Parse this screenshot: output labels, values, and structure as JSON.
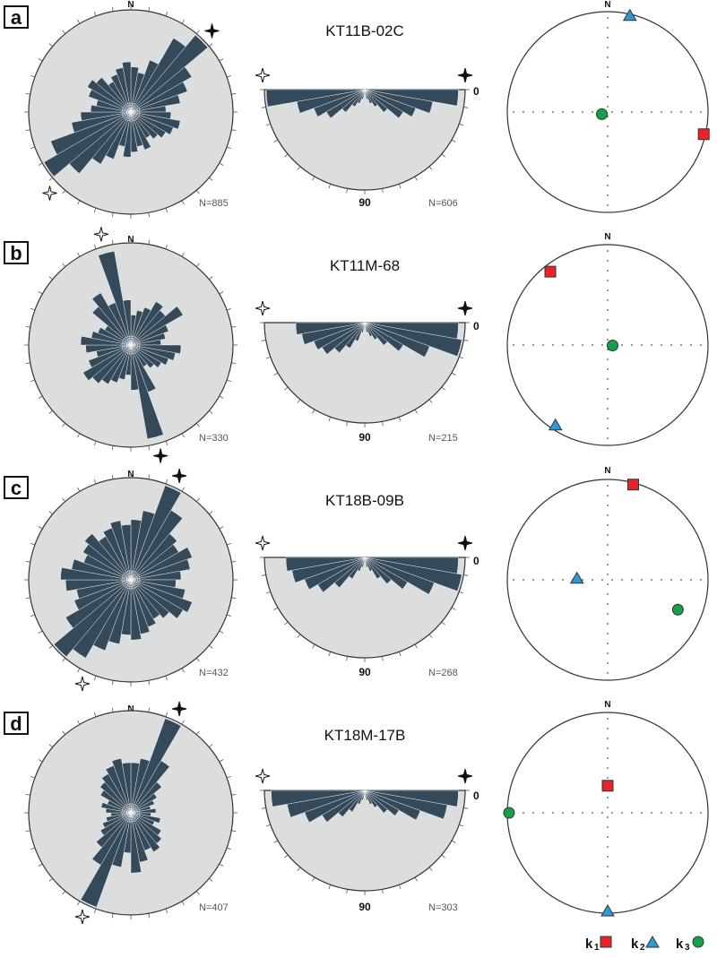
{
  "colors": {
    "bar": "#34495a",
    "disk": "#dcdddd",
    "outline": "#333333",
    "k1": "#e8232a",
    "k2": "#2b9ad6",
    "k3": "#16a04a"
  },
  "labels": {
    "north": "N",
    "dip_zero": "0",
    "dip_ninety": "90"
  },
  "legend": {
    "k1": {
      "main": "k",
      "sub": "1"
    },
    "k2": {
      "main": "k",
      "sub": "2"
    },
    "k3": {
      "main": "k",
      "sub": "3"
    }
  },
  "chart_data": [
    {
      "type": "rose",
      "panel": "a",
      "title": "KT11B-02C",
      "strike_n": "N=885",
      "dip_n": "N=606",
      "strike_bins_deg10": [
        0.45,
        0.4,
        0.55,
        0.85,
        1.0,
        0.7,
        0.6,
        0.5,
        0.35,
        0.4,
        0.5,
        0.45,
        0.4,
        0.35,
        0.3,
        0.4,
        0.35,
        0.4,
        0.45,
        0.35,
        0.5,
        0.6,
        0.8,
        1.0,
        0.85,
        0.6,
        0.5,
        0.4,
        0.35,
        0.45,
        0.5,
        0.45,
        0.35,
        0.4,
        0.45,
        0.5
      ],
      "dip_bins_deg10": [
        0.95,
        0.7,
        0.55,
        0.45,
        0.3,
        0.2,
        0.15,
        0.1,
        0.05,
        0.05,
        0.1,
        0.15,
        0.2,
        0.3,
        0.45,
        0.55,
        0.7,
        1.0
      ],
      "k1": {
        "az": 103,
        "pl": 2
      },
      "k2": {
        "az": 13,
        "pl": 2
      },
      "k3": {
        "az": 250,
        "pl": 85
      }
    },
    {
      "type": "rose",
      "panel": "b",
      "title": "KT11M-68",
      "strike_n": "N=330",
      "dip_n": "N=215",
      "strike_bins_deg10": [
        0.3,
        0.35,
        0.4,
        0.5,
        0.45,
        0.6,
        0.4,
        0.35,
        0.3,
        0.5,
        0.45,
        0.4,
        0.35,
        0.3,
        0.25,
        0.5,
        0.95,
        0.45,
        0.3,
        0.35,
        0.4,
        0.45,
        0.5,
        0.55,
        0.45,
        0.35,
        0.45,
        0.5,
        0.4,
        0.35,
        0.3,
        0.5,
        0.6,
        0.45,
        0.95,
        0.45
      ],
      "dip_bins_deg10": [
        0.95,
        1.0,
        0.7,
        0.45,
        0.3,
        0.2,
        0.15,
        0.1,
        0.05,
        0.05,
        0.1,
        0.2,
        0.3,
        0.4,
        0.5,
        0.55,
        0.65,
        0.7
      ],
      "k1": {
        "az": 322,
        "pl": 8
      },
      "k2": {
        "az": 213,
        "pl": 5
      },
      "k3": {
        "az": 95,
        "pl": 86
      }
    },
    {
      "type": "rose",
      "panel": "c",
      "title": "KT18B-09B",
      "strike_n": "N=432",
      "dip_n": "N=268",
      "strike_bins_deg10": [
        0.6,
        0.7,
        1.0,
        0.8,
        0.6,
        0.55,
        0.65,
        0.6,
        0.5,
        0.45,
        0.55,
        0.65,
        0.6,
        0.5,
        0.45,
        0.5,
        0.55,
        0.6,
        0.55,
        0.65,
        0.75,
        0.9,
        1.0,
        0.75,
        0.6,
        0.55,
        0.65,
        0.7,
        0.6,
        0.5,
        0.55,
        0.6,
        0.5,
        0.55,
        0.6,
        0.55
      ],
      "dip_bins_deg10": [
        0.95,
        1.0,
        0.75,
        0.5,
        0.35,
        0.25,
        0.15,
        0.1,
        0.05,
        0.05,
        0.1,
        0.15,
        0.25,
        0.4,
        0.55,
        0.65,
        0.75,
        0.8
      ],
      "k1": {
        "az": 15,
        "pl": 2
      },
      "k2": {
        "az": 272,
        "pl": 65
      },
      "k3": {
        "az": 113,
        "pl": 25
      }
    },
    {
      "type": "rose",
      "panel": "d",
      "title": "KT18M-17B",
      "strike_n": "N=407",
      "dip_n": "N=303",
      "strike_bins_deg10": [
        0.5,
        0.55,
        1.0,
        0.6,
        0.4,
        0.3,
        0.25,
        0.2,
        0.25,
        0.2,
        0.3,
        0.25,
        0.35,
        0.4,
        0.45,
        0.4,
        0.5,
        0.6,
        0.4,
        0.55,
        1.0,
        0.6,
        0.45,
        0.35,
        0.3,
        0.25,
        0.2,
        0.25,
        0.3,
        0.25,
        0.35,
        0.4,
        0.45,
        0.5,
        0.55,
        0.5
      ],
      "dip_bins_deg10": [
        0.95,
        0.85,
        0.6,
        0.4,
        0.3,
        0.2,
        0.15,
        0.1,
        0.05,
        0.05,
        0.1,
        0.15,
        0.25,
        0.35,
        0.5,
        0.65,
        0.8,
        0.95
      ],
      "k1": {
        "az": 0,
        "pl": 68
      },
      "k2": {
        "az": 180,
        "pl": 2
      },
      "k3": {
        "az": 270,
        "pl": 2
      }
    }
  ]
}
